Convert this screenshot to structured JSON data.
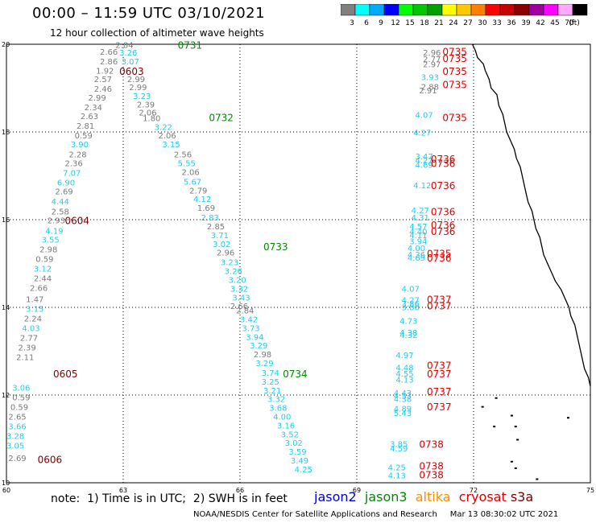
{
  "header": {
    "title": "00:00 – 11:59 UTC 03/10/2021",
    "subtitle": "12 hour collection of altimeter wave heights"
  },
  "legend": {
    "labels": [
      "3",
      "6",
      "9",
      "12",
      "15",
      "18",
      "21",
      "24",
      "27",
      "30",
      "33",
      "36",
      "39",
      "42",
      "45",
      "70",
      "(ft)"
    ],
    "colors": [
      "#808080",
      "#00ffff",
      "#00aaff",
      "#0000ff",
      "#00ff00",
      "#00c800",
      "#00a000",
      "#ffff00",
      "#ffc800",
      "#ff8000",
      "#ff0000",
      "#c80000",
      "#8b0000",
      "#a000a0",
      "#ff00ff",
      "#ffaaff",
      "#000000"
    ]
  },
  "axes": {
    "lon_labels": [
      "60",
      "63",
      "66",
      "69",
      "72",
      "75"
    ],
    "lon_values": [
      60,
      63,
      66,
      69,
      72,
      75
    ],
    "lat_labels": [
      "20",
      "18",
      "16",
      "14",
      "12",
      "10"
    ],
    "lat_values": [
      20,
      18,
      16,
      14,
      12,
      10
    ]
  },
  "colors": {
    "gray": "#7a7a7a",
    "cyan": "#22ccee",
    "jason3": "#008a00",
    "cryosat": "#e00000",
    "s3a": "#7a0000",
    "jason2": "#0000dd",
    "altika": "#ff8c00",
    "coast": "#000000"
  },
  "passes": [
    {
      "time": "0731",
      "color": "jason3",
      "lon": 64.4,
      "lat": 19.9
    },
    {
      "time": "0732",
      "color": "jason3",
      "lon": 65.2,
      "lat": 18.25
    },
    {
      "time": "0733",
      "color": "jason3",
      "lon": 66.6,
      "lat": 15.3
    },
    {
      "time": "0734",
      "color": "jason3",
      "lon": 67.1,
      "lat": 12.4
    },
    {
      "time": "0603",
      "color": "s3a",
      "lon": 62.9,
      "lat": 19.3
    },
    {
      "time": "0604",
      "color": "s3a",
      "lon": 61.5,
      "lat": 15.9
    },
    {
      "time": "0605",
      "color": "s3a",
      "lon": 61.2,
      "lat": 12.4
    },
    {
      "time": "0606",
      "color": "s3a",
      "lon": 60.8,
      "lat": 10.45
    },
    {
      "time": "0735",
      "color": "cryosat",
      "lon": 71.2,
      "lat": 19.75
    },
    {
      "time": "0735",
      "color": "cryosat",
      "lon": 71.2,
      "lat": 19.6
    },
    {
      "time": "0735",
      "color": "cryosat",
      "lon": 71.2,
      "lat": 19.3
    },
    {
      "time": "0735",
      "color": "cryosat",
      "lon": 71.2,
      "lat": 19.0
    },
    {
      "time": "0735",
      "color": "cryosat",
      "lon": 71.2,
      "lat": 18.25
    },
    {
      "time": "0736",
      "color": "cryosat",
      "lon": 70.9,
      "lat": 17.3
    },
    {
      "time": "0736",
      "color": "cryosat",
      "lon": 70.9,
      "lat": 17.2
    },
    {
      "time": "0736",
      "color": "cryosat",
      "lon": 70.9,
      "lat": 16.7
    },
    {
      "time": "0736",
      "color": "cryosat",
      "lon": 70.9,
      "lat": 16.1
    },
    {
      "time": "0736",
      "color": "cryosat",
      "lon": 70.9,
      "lat": 15.8
    },
    {
      "time": "0736",
      "color": "cryosat",
      "lon": 70.9,
      "lat": 15.65
    },
    {
      "time": "0735",
      "color": "cryosat",
      "lon": 70.8,
      "lat": 15.15
    },
    {
      "time": "0736",
      "color": "cryosat",
      "lon": 70.8,
      "lat": 15.05
    },
    {
      "time": "0737",
      "color": "cryosat",
      "lon": 70.8,
      "lat": 14.1
    },
    {
      "time": "0737",
      "color": "cryosat",
      "lon": 70.8,
      "lat": 13.95
    },
    {
      "time": "0737",
      "color": "cryosat",
      "lon": 70.8,
      "lat": 12.6
    },
    {
      "time": "0737",
      "color": "cryosat",
      "lon": 70.8,
      "lat": 12.4
    },
    {
      "time": "0737",
      "color": "cryosat",
      "lon": 70.8,
      "lat": 12.0
    },
    {
      "time": "0737",
      "color": "cryosat",
      "lon": 70.8,
      "lat": 11.65
    },
    {
      "time": "0738",
      "color": "cryosat",
      "lon": 70.6,
      "lat": 10.8
    },
    {
      "time": "0738",
      "color": "cryosat",
      "lon": 70.6,
      "lat": 10.3
    },
    {
      "time": "0738",
      "color": "cryosat",
      "lon": 70.6,
      "lat": 10.1
    }
  ],
  "track_s3a": [
    {
      "v": "2.84",
      "c": "gray",
      "lon": 62.8,
      "lat": 19.92
    },
    {
      "v": "2.66",
      "c": "gray",
      "lon": 62.4,
      "lat": 19.76
    },
    {
      "v": "3.26",
      "c": "cyan",
      "lon": 62.9,
      "lat": 19.74
    },
    {
      "v": "2.86",
      "c": "gray",
      "lon": 62.4,
      "lat": 19.54
    },
    {
      "v": "3.07",
      "c": "cyan",
      "lon": 62.95,
      "lat": 19.54
    },
    {
      "v": "1.92",
      "c": "gray",
      "lon": 62.3,
      "lat": 19.33
    },
    {
      "v": "2.57",
      "c": "gray",
      "lon": 62.25,
      "lat": 19.14
    },
    {
      "v": "2.99",
      "c": "gray",
      "lon": 63.1,
      "lat": 19.14
    },
    {
      "v": "2.46",
      "c": "gray",
      "lon": 62.25,
      "lat": 18.92
    },
    {
      "v": "2.99",
      "c": "gray",
      "lon": 63.15,
      "lat": 18.95
    },
    {
      "v": "2.99",
      "c": "gray",
      "lon": 62.1,
      "lat": 18.72
    },
    {
      "v": "3.23",
      "c": "cyan",
      "lon": 63.25,
      "lat": 18.75
    },
    {
      "v": "2.39",
      "c": "gray",
      "lon": 63.35,
      "lat": 18.56
    },
    {
      "v": "2.34",
      "c": "gray",
      "lon": 62.0,
      "lat": 18.5
    },
    {
      "v": "2.06",
      "c": "gray",
      "lon": 63.4,
      "lat": 18.38
    },
    {
      "v": "2.63",
      "c": "gray",
      "lon": 61.9,
      "lat": 18.29
    },
    {
      "v": "1.80",
      "c": "gray",
      "lon": 63.5,
      "lat": 18.25
    },
    {
      "v": "2.81",
      "c": "gray",
      "lon": 61.8,
      "lat": 18.07
    },
    {
      "v": "3.22",
      "c": "cyan",
      "lon": 63.8,
      "lat": 18.05
    },
    {
      "v": "0.59",
      "c": "gray",
      "lon": 61.75,
      "lat": 17.85
    },
    {
      "v": "2.06",
      "c": "gray",
      "lon": 63.9,
      "lat": 17.85
    },
    {
      "v": "3.90",
      "c": "cyan",
      "lon": 61.65,
      "lat": 17.65
    },
    {
      "v": "3.15",
      "c": "cyan",
      "lon": 64.0,
      "lat": 17.65
    },
    {
      "v": "2.28",
      "c": "gray",
      "lon": 61.6,
      "lat": 17.42
    },
    {
      "v": "2.56",
      "c": "gray",
      "lon": 64.3,
      "lat": 17.42
    },
    {
      "v": "2.36",
      "c": "gray",
      "lon": 61.5,
      "lat": 17.22
    },
    {
      "v": "5.55",
      "c": "cyan",
      "lon": 64.4,
      "lat": 17.22
    },
    {
      "v": "7.07",
      "c": "cyan",
      "lon": 61.45,
      "lat": 17.0
    },
    {
      "v": "2.06",
      "c": "gray",
      "lon": 64.5,
      "lat": 17.02
    },
    {
      "v": "6.90",
      "c": "cyan",
      "lon": 61.3,
      "lat": 16.78
    },
    {
      "v": "5.67",
      "c": "cyan",
      "lon": 64.55,
      "lat": 16.8
    },
    {
      "v": "2.69",
      "c": "gray",
      "lon": 61.25,
      "lat": 16.58
    },
    {
      "v": "2.79",
      "c": "gray",
      "lon": 64.7,
      "lat": 16.6
    },
    {
      "v": "4.44",
      "c": "cyan",
      "lon": 61.15,
      "lat": 16.35
    },
    {
      "v": "4.12",
      "c": "cyan",
      "lon": 64.8,
      "lat": 16.4
    },
    {
      "v": "1.69",
      "c": "gray",
      "lon": 64.9,
      "lat": 16.2
    },
    {
      "v": "2.58",
      "c": "gray",
      "lon": 61.15,
      "lat": 16.12
    },
    {
      "v": "2.83",
      "c": "cyan",
      "lon": 65.0,
      "lat": 15.98
    },
    {
      "v": "2.93",
      "c": "gray",
      "lon": 61.05,
      "lat": 15.92
    },
    {
      "v": "2.85",
      "c": "gray",
      "lon": 65.15,
      "lat": 15.78
    },
    {
      "v": "4.19",
      "c": "cyan",
      "lon": 61.0,
      "lat": 15.68
    },
    {
      "v": "3.71",
      "c": "cyan",
      "lon": 65.25,
      "lat": 15.58
    },
    {
      "v": "3.55",
      "c": "cyan",
      "lon": 60.9,
      "lat": 15.48
    },
    {
      "v": "3.02",
      "c": "cyan",
      "lon": 65.3,
      "lat": 15.38
    },
    {
      "v": "2.98",
      "c": "gray",
      "lon": 60.85,
      "lat": 15.26
    },
    {
      "v": "2.96",
      "c": "gray",
      "lon": 65.4,
      "lat": 15.18
    },
    {
      "v": "0.59",
      "c": "gray",
      "lon": 60.75,
      "lat": 15.04
    },
    {
      "v": "3.23",
      "c": "cyan",
      "lon": 65.5,
      "lat": 14.96
    },
    {
      "v": "3.12",
      "c": "cyan",
      "lon": 60.7,
      "lat": 14.82
    },
    {
      "v": "3.26",
      "c": "cyan",
      "lon": 65.6,
      "lat": 14.76
    },
    {
      "v": "2.44",
      "c": "gray",
      "lon": 60.7,
      "lat": 14.6
    },
    {
      "v": "3.20",
      "c": "cyan",
      "lon": 65.7,
      "lat": 14.56
    },
    {
      "v": "3.32",
      "c": "cyan",
      "lon": 65.75,
      "lat": 14.36
    },
    {
      "v": "2.66",
      "c": "gray",
      "lon": 60.6,
      "lat": 14.38
    },
    {
      "v": "3.43",
      "c": "cyan",
      "lon": 65.8,
      "lat": 14.16
    },
    {
      "v": "2.66",
      "c": "gray",
      "lon": 65.75,
      "lat": 13.96
    },
    {
      "v": "1.47",
      "c": "gray",
      "lon": 60.5,
      "lat": 14.12
    },
    {
      "v": "2.84",
      "c": "gray",
      "lon": 65.9,
      "lat": 13.86
    },
    {
      "v": "3.15",
      "c": "cyan",
      "lon": 60.5,
      "lat": 13.9
    },
    {
      "v": "3.42",
      "c": "cyan",
      "lon": 66.0,
      "lat": 13.66
    },
    {
      "v": "2.24",
      "c": "gray",
      "lon": 60.45,
      "lat": 13.68
    },
    {
      "v": "3.73",
      "c": "cyan",
      "lon": 66.05,
      "lat": 13.46
    },
    {
      "v": "4.03",
      "c": "cyan",
      "lon": 60.4,
      "lat": 13.46
    },
    {
      "v": "3.94",
      "c": "cyan",
      "lon": 66.15,
      "lat": 13.26
    },
    {
      "v": "2.77",
      "c": "gray",
      "lon": 60.35,
      "lat": 13.24
    },
    {
      "v": "3.29",
      "c": "cyan",
      "lon": 66.25,
      "lat": 13.06
    },
    {
      "v": "2.39",
      "c": "gray",
      "lon": 60.3,
      "lat": 13.02
    },
    {
      "v": "2.98",
      "c": "gray",
      "lon": 66.35,
      "lat": 12.86
    },
    {
      "v": "2.11",
      "c": "gray",
      "lon": 60.25,
      "lat": 12.8
    },
    {
      "v": "3.29",
      "c": "cyan",
      "lon": 66.4,
      "lat": 12.66
    },
    {
      "v": "3.74",
      "c": "cyan",
      "lon": 66.55,
      "lat": 12.44
    },
    {
      "v": "3.06",
      "c": "cyan",
      "lon": 60.15,
      "lat": 12.1
    },
    {
      "v": "3.25",
      "c": "cyan",
      "lon": 66.55,
      "lat": 12.24
    },
    {
      "v": "0.59",
      "c": "gray",
      "lon": 60.15,
      "lat": 11.88
    },
    {
      "v": "3.21",
      "c": "cyan",
      "lon": 66.6,
      "lat": 12.04
    },
    {
      "v": "0.59",
      "c": "gray",
      "lon": 60.1,
      "lat": 11.66
    },
    {
      "v": "3.32",
      "c": "cyan",
      "lon": 66.7,
      "lat": 11.84
    },
    {
      "v": "2.65",
      "c": "gray",
      "lon": 60.05,
      "lat": 11.44
    },
    {
      "v": "3.68",
      "c": "cyan",
      "lon": 66.75,
      "lat": 11.64
    },
    {
      "v": "3.66",
      "c": "cyan",
      "lon": 60.05,
      "lat": 11.22
    },
    {
      "v": "4.00",
      "c": "cyan",
      "lon": 66.85,
      "lat": 11.44
    },
    {
      "v": "3.28",
      "c": "cyan",
      "lon": 60.0,
      "lat": 11.0
    },
    {
      "v": "3.16",
      "c": "cyan",
      "lon": 66.95,
      "lat": 11.24
    },
    {
      "v": "3.05",
      "c": "cyan",
      "lon": 60.0,
      "lat": 10.78
    },
    {
      "v": "3.52",
      "c": "cyan",
      "lon": 67.05,
      "lat": 11.04
    },
    {
      "v": "2.69",
      "c": "gray",
      "lon": 60.05,
      "lat": 10.5
    },
    {
      "v": "3.02",
      "c": "cyan",
      "lon": 67.15,
      "lat": 10.84
    },
    {
      "v": "3.59",
      "c": "cyan",
      "lon": 67.25,
      "lat": 10.64
    },
    {
      "v": "3.49",
      "c": "cyan",
      "lon": 67.3,
      "lat": 10.44
    },
    {
      "v": "4.25",
      "c": "cyan",
      "lon": 67.4,
      "lat": 10.24
    }
  ],
  "track_cryo": [
    {
      "v": "2.96",
      "c": "gray",
      "lon": 70.7,
      "lat": 19.74
    },
    {
      "v": "2.77",
      "c": "gray",
      "lon": 70.7,
      "lat": 19.6
    },
    {
      "v": "2.97",
      "c": "gray",
      "lon": 70.7,
      "lat": 19.48
    },
    {
      "v": "3.93",
      "c": "cyan",
      "lon": 70.65,
      "lat": 19.18
    },
    {
      "v": "2.88",
      "c": "gray",
      "lon": 70.65,
      "lat": 18.96
    },
    {
      "v": "2.91",
      "c": "gray",
      "lon": 70.6,
      "lat": 18.88
    },
    {
      "v": "4.07",
      "c": "cyan",
      "lon": 70.5,
      "lat": 18.32
    },
    {
      "v": "4.27",
      "c": "cyan",
      "lon": 70.45,
      "lat": 17.92
    },
    {
      "v": "3.47",
      "c": "cyan",
      "lon": 70.5,
      "lat": 17.38
    },
    {
      "v": "4.27",
      "c": "cyan",
      "lon": 70.5,
      "lat": 17.28
    },
    {
      "v": "4.69",
      "c": "cyan",
      "lon": 70.5,
      "lat": 17.18
    },
    {
      "v": "4.12",
      "c": "cyan",
      "lon": 70.45,
      "lat": 16.72
    },
    {
      "v": "4.27",
      "c": "cyan",
      "lon": 70.4,
      "lat": 16.15
    },
    {
      "v": "4.31",
      "c": "cyan",
      "lon": 70.4,
      "lat": 15.98
    },
    {
      "v": "4.57",
      "c": "cyan",
      "lon": 70.35,
      "lat": 15.78
    },
    {
      "v": "4.40",
      "c": "cyan",
      "lon": 70.35,
      "lat": 15.66
    },
    {
      "v": "4.11",
      "c": "cyan",
      "lon": 70.35,
      "lat": 15.58
    },
    {
      "v": "3.94",
      "c": "cyan",
      "lon": 70.35,
      "lat": 15.44
    },
    {
      "v": "4.00",
      "c": "cyan",
      "lon": 70.3,
      "lat": 15.28
    },
    {
      "v": "4.36",
      "c": "cyan",
      "lon": 70.3,
      "lat": 15.14
    },
    {
      "v": "4.69",
      "c": "cyan",
      "lon": 70.3,
      "lat": 15.06
    },
    {
      "v": "4.07",
      "c": "cyan",
      "lon": 70.15,
      "lat": 14.36
    },
    {
      "v": "4.27",
      "c": "cyan",
      "lon": 70.15,
      "lat": 14.1
    },
    {
      "v": "3.86",
      "c": "cyan",
      "lon": 70.15,
      "lat": 14.02
    },
    {
      "v": "3.80",
      "c": "cyan",
      "lon": 70.15,
      "lat": 13.94
    },
    {
      "v": "4.73",
      "c": "cyan",
      "lon": 70.1,
      "lat": 13.62
    },
    {
      "v": "4.38",
      "c": "cyan",
      "lon": 70.1,
      "lat": 13.36
    },
    {
      "v": "4.32",
      "c": "cyan",
      "lon": 70.1,
      "lat": 13.3
    },
    {
      "v": "4.97",
      "c": "cyan",
      "lon": 70.0,
      "lat": 12.84
    },
    {
      "v": "4.48",
      "c": "cyan",
      "lon": 70.0,
      "lat": 12.56
    },
    {
      "v": "4.55",
      "c": "cyan",
      "lon": 70.0,
      "lat": 12.42
    },
    {
      "v": "4.13",
      "c": "cyan",
      "lon": 70.0,
      "lat": 12.28
    },
    {
      "v": "4.43",
      "c": "cyan",
      "lon": 69.95,
      "lat": 11.98
    },
    {
      "v": "4.53",
      "c": "cyan",
      "lon": 69.95,
      "lat": 11.92
    },
    {
      "v": "4.38",
      "c": "cyan",
      "lon": 69.95,
      "lat": 11.84
    },
    {
      "v": "4.89",
      "c": "cyan",
      "lon": 69.95,
      "lat": 11.62
    },
    {
      "v": "5.43",
      "c": "cyan",
      "lon": 69.95,
      "lat": 11.52
    },
    {
      "v": "3.85",
      "c": "cyan",
      "lon": 69.85,
      "lat": 10.82
    },
    {
      "v": "4.59",
      "c": "cyan",
      "lon": 69.85,
      "lat": 10.72
    },
    {
      "v": "4.25",
      "c": "cyan",
      "lon": 69.8,
      "lat": 10.28
    },
    {
      "v": "4.13",
      "c": "cyan",
      "lon": 69.8,
      "lat": 10.1
    }
  ],
  "coastline": [
    [
      71.97,
      20.0
    ],
    [
      72.05,
      19.85
    ],
    [
      72.1,
      19.7
    ],
    [
      72.25,
      19.55
    ],
    [
      72.3,
      19.4
    ],
    [
      72.4,
      19.2
    ],
    [
      72.45,
      19.0
    ],
    [
      72.6,
      18.85
    ],
    [
      72.65,
      18.6
    ],
    [
      72.75,
      18.4
    ],
    [
      72.8,
      18.2
    ],
    [
      72.85,
      18.0
    ],
    [
      72.95,
      17.8
    ],
    [
      73.05,
      17.6
    ],
    [
      73.1,
      17.4
    ],
    [
      73.2,
      17.2
    ],
    [
      73.25,
      17.0
    ],
    [
      73.3,
      16.8
    ],
    [
      73.35,
      16.6
    ],
    [
      73.4,
      16.4
    ],
    [
      73.5,
      16.2
    ],
    [
      73.55,
      16.0
    ],
    [
      73.6,
      15.8
    ],
    [
      73.7,
      15.6
    ],
    [
      73.75,
      15.4
    ],
    [
      73.8,
      15.2
    ],
    [
      73.9,
      15.0
    ],
    [
      74.0,
      14.8
    ],
    [
      74.1,
      14.6
    ],
    [
      74.25,
      14.4
    ],
    [
      74.35,
      14.2
    ],
    [
      74.45,
      14.0
    ],
    [
      74.5,
      13.8
    ],
    [
      74.6,
      13.6
    ],
    [
      74.65,
      13.4
    ],
    [
      74.7,
      13.2
    ],
    [
      74.75,
      13.0
    ],
    [
      74.8,
      12.8
    ],
    [
      74.85,
      12.6
    ],
    [
      74.95,
      12.4
    ],
    [
      75.0,
      12.2
    ]
  ],
  "islands": [
    [
      72.2,
      11.75
    ],
    [
      72.55,
      11.95
    ],
    [
      72.5,
      11.3
    ],
    [
      72.95,
      11.55
    ],
    [
      73.05,
      11.3
    ],
    [
      73.1,
      11.0
    ],
    [
      72.95,
      10.5
    ],
    [
      73.05,
      10.35
    ],
    [
      73.6,
      10.1
    ],
    [
      74.4,
      11.5
    ]
  ],
  "footer": {
    "note": "note:  1) Time is in UTC;  2) SWH is in feet",
    "jason2": "jason2",
    "jason3": "jason3",
    "altika": "altika",
    "cryosat": "cryosat",
    "s3a": "s3a",
    "credit": "NOAA/NESDIS Center for Satellite Applications and Research     Mar 13 08:30:02 UTC 2021"
  }
}
